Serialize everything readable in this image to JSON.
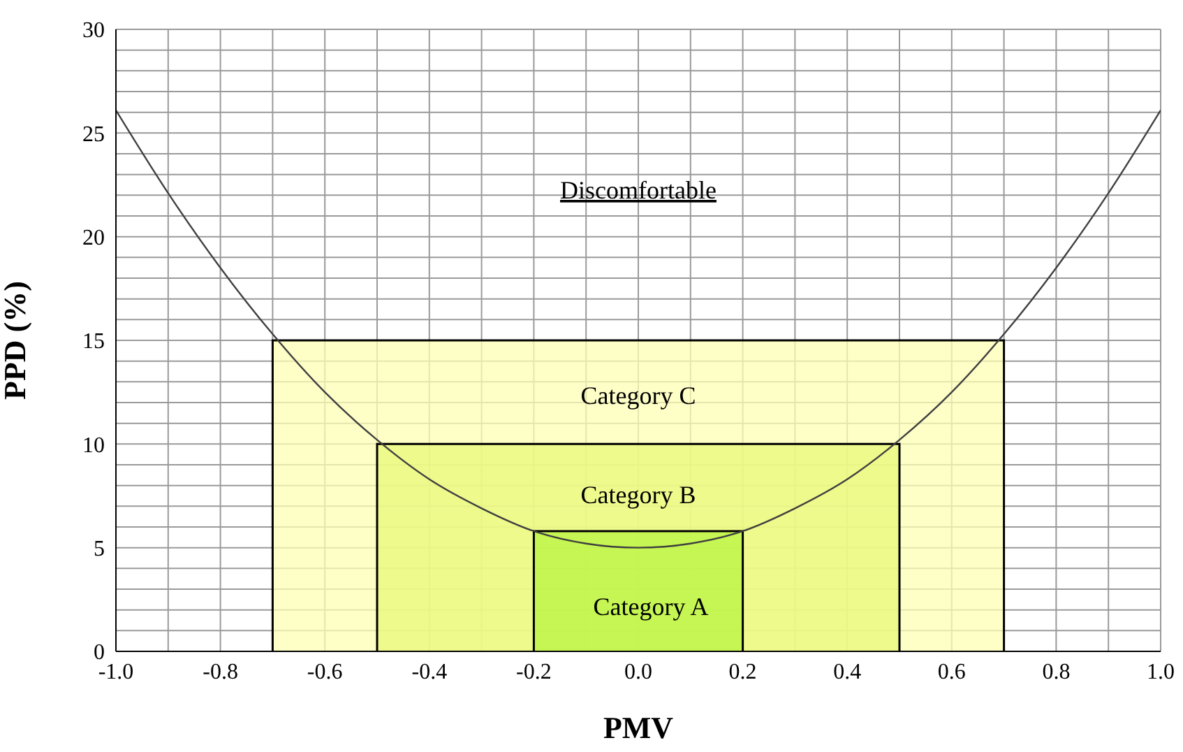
{
  "chart_data": {
    "type": "line",
    "xlabel": "PMV",
    "ylabel": "PPD (%)",
    "xlim": [
      -1.0,
      1.0
    ],
    "xticks": [
      {
        "value": -1.0,
        "label": "-1.0"
      },
      {
        "value": -0.9,
        "label": null
      },
      {
        "value": -0.8,
        "label": "-0.8"
      },
      {
        "value": -0.7,
        "label": null
      },
      {
        "value": -0.6,
        "label": "-0.6"
      },
      {
        "value": -0.5,
        "label": null
      },
      {
        "value": -0.4,
        "label": "-0.4"
      },
      {
        "value": -0.3,
        "label": null
      },
      {
        "value": -0.2,
        "label": "-0.2"
      },
      {
        "value": -0.1,
        "label": null
      },
      {
        "value": 0,
        "label": "0.0"
      },
      {
        "value": 0.1,
        "label": null
      },
      {
        "value": 0.2,
        "label": "0.2"
      },
      {
        "value": 0.3,
        "label": null
      },
      {
        "value": 0.4,
        "label": "0.4"
      },
      {
        "value": 0.5,
        "label": null
      },
      {
        "value": 0.6,
        "label": "0.6"
      },
      {
        "value": 0.7,
        "label": null
      },
      {
        "value": 0.8,
        "label": "0.8"
      },
      {
        "value": 0.9,
        "label": null
      },
      {
        "value": 1.0,
        "label": "1.0"
      }
    ],
    "ylim": [
      0,
      30
    ],
    "yticks": [
      0,
      {
        "value": 1,
        "label": null
      },
      {
        "value": 2,
        "label": null
      },
      {
        "value": 3,
        "label": null
      },
      {
        "value": 4,
        "label": null
      },
      5,
      {
        "value": 6,
        "label": null
      },
      {
        "value": 7,
        "label": null
      },
      {
        "value": 8,
        "label": null
      },
      {
        "value": 9,
        "label": null
      },
      10,
      {
        "value": 11,
        "label": null
      },
      {
        "value": 12,
        "label": null
      },
      {
        "value": 13,
        "label": null
      },
      {
        "value": 14,
        "label": null
      },
      15,
      {
        "value": 16,
        "label": null
      },
      {
        "value": 17,
        "label": null
      },
      {
        "value": 18,
        "label": null
      },
      {
        "value": 19,
        "label": null
      },
      20,
      {
        "value": 21,
        "label": null
      },
      {
        "value": 22,
        "label": null
      },
      {
        "value": 23,
        "label": null
      },
      {
        "value": 24,
        "label": null
      },
      25,
      {
        "value": 26,
        "label": null
      },
      {
        "value": 27,
        "label": null
      },
      {
        "value": 28,
        "label": null
      },
      {
        "value": 29,
        "label": null
      },
      30
    ],
    "grid": true,
    "legend": false,
    "series": [
      {
        "type": "area",
        "color": "#fdfdb4",
        "x": [
          -0.7,
          -0.7,
          0.7,
          0.7
        ],
        "values": [
          0,
          15,
          15,
          0
        ]
      },
      {
        "type": "area",
        "color": "#e8f878",
        "x": [
          -0.5,
          -0.5,
          0.5,
          0.5
        ],
        "values": [
          0,
          10,
          10,
          0
        ]
      },
      {
        "type": "area",
        "color": "#b8f440",
        "x": [
          -0.2,
          -0.2,
          0.2,
          0.2
        ],
        "values": [
          0,
          5.8,
          5.8,
          0
        ]
      },
      {
        "color": "#404040",
        "x": [
          -1.0,
          -0.9,
          -0.8,
          -0.7,
          -0.6,
          -0.5,
          -0.4,
          -0.3,
          -0.2,
          -0.1,
          0,
          0.1,
          0.2,
          0.3,
          0.4,
          0.5,
          0.6,
          0.7,
          0.8,
          0.9,
          1.0
        ],
        "values": [
          26.1,
          22.1,
          18.5,
          15.3,
          12.5,
          10.2,
          8.3,
          6.9,
          5.8,
          5.2,
          5.0,
          5.2,
          5.8,
          6.9,
          8.3,
          10.2,
          12.5,
          15.3,
          18.5,
          22.1,
          26.1
        ]
      }
    ],
    "annotations": [
      "Discomfortable",
      "Category C",
      "Category B",
      "Category A"
    ]
  }
}
